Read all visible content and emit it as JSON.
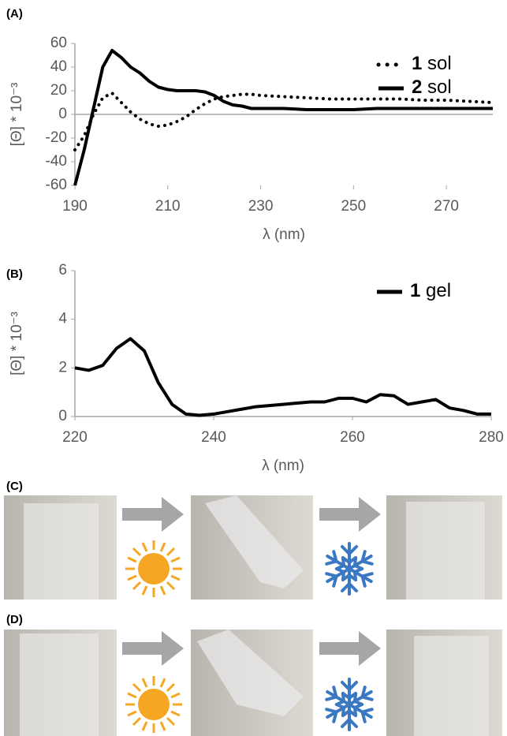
{
  "chart_data": [
    {
      "type": "line",
      "panel_label": "(A)",
      "x_label": "λ (nm)",
      "y_label": "[Θ] * 10⁻³",
      "x": [
        190,
        192,
        194,
        196,
        198,
        200,
        202,
        204,
        206,
        208,
        210,
        212,
        214,
        216,
        218,
        220,
        222,
        224,
        226,
        228,
        230,
        235,
        240,
        245,
        250,
        255,
        260,
        265,
        270,
        275,
        280
      ],
      "series": [
        {
          "name": "1 sol",
          "color": "#000000",
          "style": "dotted",
          "values": [
            -30,
            -18,
            0,
            14,
            18,
            10,
            2,
            -4,
            -8,
            -10,
            -9,
            -6,
            -2,
            4,
            9,
            13,
            15,
            16,
            17,
            17,
            16,
            15,
            14,
            13,
            13,
            13,
            13,
            12,
            12,
            11,
            10
          ]
        },
        {
          "name": "2 sol",
          "color": "#000000",
          "style": "solid",
          "values": [
            -60,
            -30,
            5,
            40,
            54,
            48,
            40,
            35,
            28,
            23,
            21,
            20,
            20,
            20,
            19,
            16,
            11,
            8,
            7,
            5,
            5,
            5,
            4,
            4,
            4,
            5,
            5,
            5,
            5,
            5,
            5
          ]
        }
      ],
      "xlim": [
        190,
        280
      ],
      "xticks": [
        190,
        210,
        230,
        250,
        270
      ],
      "ylim": [
        -60,
        60
      ],
      "yticks": [
        -60,
        -40,
        -20,
        0,
        20,
        40,
        60
      ],
      "legend": "upper right"
    },
    {
      "type": "line",
      "panel_label": "(B)",
      "x_label": "λ (nm)",
      "y_label": "[Θ] * 10⁻³",
      "x": [
        220,
        222,
        224,
        226,
        228,
        230,
        232,
        234,
        236,
        238,
        240,
        242,
        244,
        246,
        248,
        250,
        252,
        254,
        256,
        258,
        260,
        262,
        264,
        266,
        268,
        270,
        272,
        274,
        276,
        278,
        280
      ],
      "series": [
        {
          "name": "1 gel",
          "color": "#000000",
          "style": "solid",
          "values": [
            2.0,
            1.9,
            2.1,
            2.8,
            3.2,
            2.7,
            1.4,
            0.5,
            0.1,
            0.05,
            0.1,
            0.2,
            0.3,
            0.4,
            0.45,
            0.5,
            0.55,
            0.6,
            0.6,
            0.75,
            0.75,
            0.6,
            0.9,
            0.85,
            0.5,
            0.6,
            0.7,
            0.35,
            0.25,
            0.1,
            0.1
          ]
        }
      ],
      "xlim": [
        220,
        280
      ],
      "xticks": [
        220,
        240,
        260,
        280
      ],
      "ylim": [
        0,
        6
      ],
      "yticks": [
        0,
        2,
        4,
        6
      ],
      "legend": "upper right"
    }
  ],
  "photos": [
    {
      "label": "(C)"
    },
    {
      "label": "(D)"
    }
  ]
}
